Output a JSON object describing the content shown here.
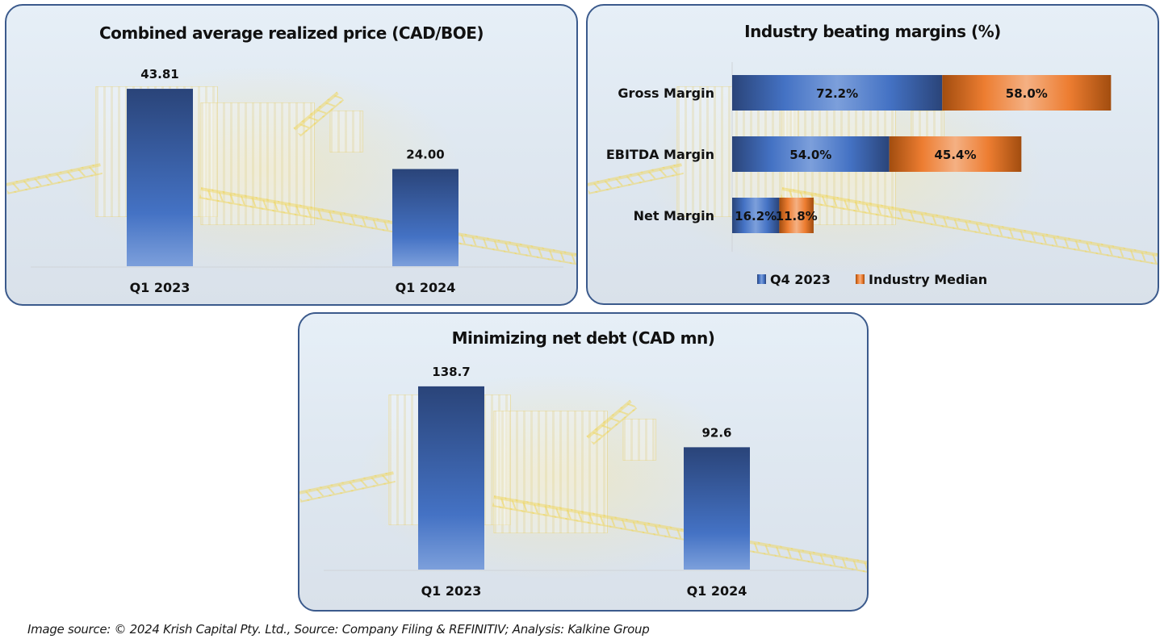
{
  "colors": {
    "series_blue_dark": "#2a4479",
    "series_blue_light": "#7c9fdb",
    "series_blue_mid": "#4472c4",
    "series_orange_dark": "#a24d0f",
    "series_orange_mid": "#ed7d31",
    "series_orange_light": "#f4b083",
    "panel_border": "#3b5a8c"
  },
  "chart_data": [
    {
      "id": "realized-price",
      "type": "bar",
      "title": "Combined average realized price (CAD/BOE)",
      "xlabel": "",
      "ylabel": "",
      "categories": [
        "Q1 2023",
        "Q1 2024"
      ],
      "values": [
        43.81,
        24.0
      ],
      "value_labels": [
        "43.81",
        "24.00"
      ],
      "ylim": [
        0,
        50
      ],
      "grid": false,
      "legend": "none"
    },
    {
      "id": "margins",
      "type": "bar",
      "orientation": "horizontal",
      "stacked": true,
      "title": "Industry beating margins (%)",
      "categories": [
        "Gross Margin",
        "EBITDA Margin",
        "Net Margin"
      ],
      "series": [
        {
          "name": "Q4 2023",
          "values": [
            72.2,
            54.0,
            16.2
          ],
          "value_labels": [
            "72.2%",
            "54.0%",
            "16.2%"
          ],
          "color": "#4472c4"
        },
        {
          "name": "Industry Median",
          "values": [
            58.0,
            45.4,
            11.8
          ],
          "value_labels": [
            "58.0%",
            "45.4%",
            "11.8%"
          ],
          "color": "#ed7d31"
        }
      ],
      "xlim": [
        0,
        140
      ],
      "grid": false,
      "legend": "bottom"
    },
    {
      "id": "net-debt",
      "type": "bar",
      "title": "Minimizing net debt (CAD mn)",
      "xlabel": "",
      "ylabel": "",
      "categories": [
        "Q1 2023",
        "Q1 2024"
      ],
      "values": [
        138.7,
        92.6
      ],
      "value_labels": [
        "138.7",
        "92.6"
      ],
      "ylim": [
        0,
        160
      ],
      "grid": false,
      "legend": "none"
    }
  ],
  "footer": {
    "source_text": "Image source: © 2024 Krish Capital Pty. Ltd., Source: Company Filing & REFINITIV; Analysis: Kalkine Group"
  }
}
